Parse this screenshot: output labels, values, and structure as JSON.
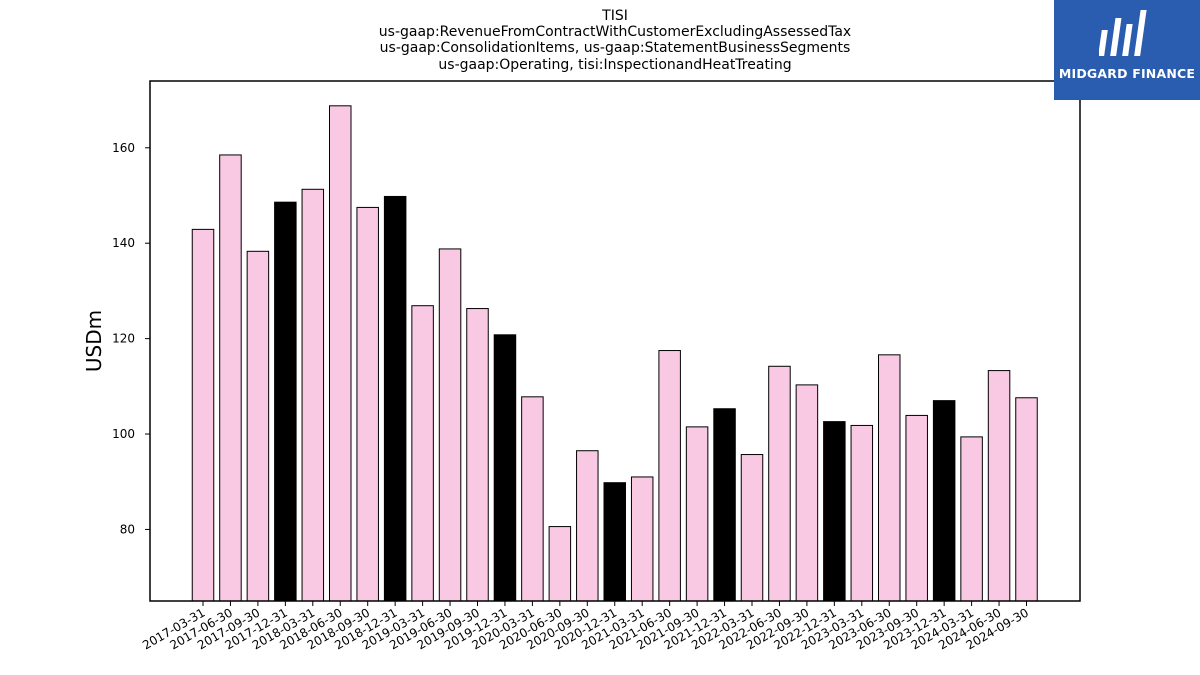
{
  "brand": {
    "name": "MIDGARD FINANCE",
    "color": "#2a5db0"
  },
  "chart_data": {
    "type": "bar",
    "title_lines": [
      "TISI",
      "us-gaap:RevenueFromContractWithCustomerExcludingAssessedTax",
      "us-gaap:ConsolidationItems, us-gaap:StatementBusinessSegments",
      "us-gaap:Operating, tisi:InspectionandHeatTreating"
    ],
    "xlabel": "",
    "ylabel": "USDm",
    "ylim": [
      65,
      174
    ],
    "yticks": [
      80,
      100,
      120,
      140,
      160
    ],
    "grid": false,
    "colors": {
      "quarter": "#f9c9e3",
      "year_end": "#000000",
      "edge": "#000000"
    },
    "categories": [
      "2017-03-31",
      "2017-06-30",
      "2017-09-30",
      "2017-12-31",
      "2018-03-31",
      "2018-06-30",
      "2018-09-30",
      "2018-12-31",
      "2019-03-31",
      "2019-06-30",
      "2019-09-30",
      "2019-12-31",
      "2020-03-31",
      "2020-06-30",
      "2020-09-30",
      "2020-12-31",
      "2021-03-31",
      "2021-06-30",
      "2021-09-30",
      "2021-12-31",
      "2022-03-31",
      "2022-06-30",
      "2022-09-30",
      "2022-12-31",
      "2023-03-31",
      "2023-06-30",
      "2023-09-30",
      "2023-12-31",
      "2024-03-31",
      "2024-06-30",
      "2024-09-30"
    ],
    "values": [
      142.9,
      158.5,
      138.3,
      148.6,
      151.3,
      168.8,
      147.5,
      149.8,
      126.9,
      138.8,
      126.3,
      120.8,
      107.8,
      80.6,
      96.5,
      89.8,
      91.0,
      117.5,
      101.5,
      105.3,
      95.7,
      114.2,
      110.3,
      102.6,
      101.8,
      116.6,
      103.9,
      107.0,
      99.4,
      113.3,
      107.6
    ]
  }
}
